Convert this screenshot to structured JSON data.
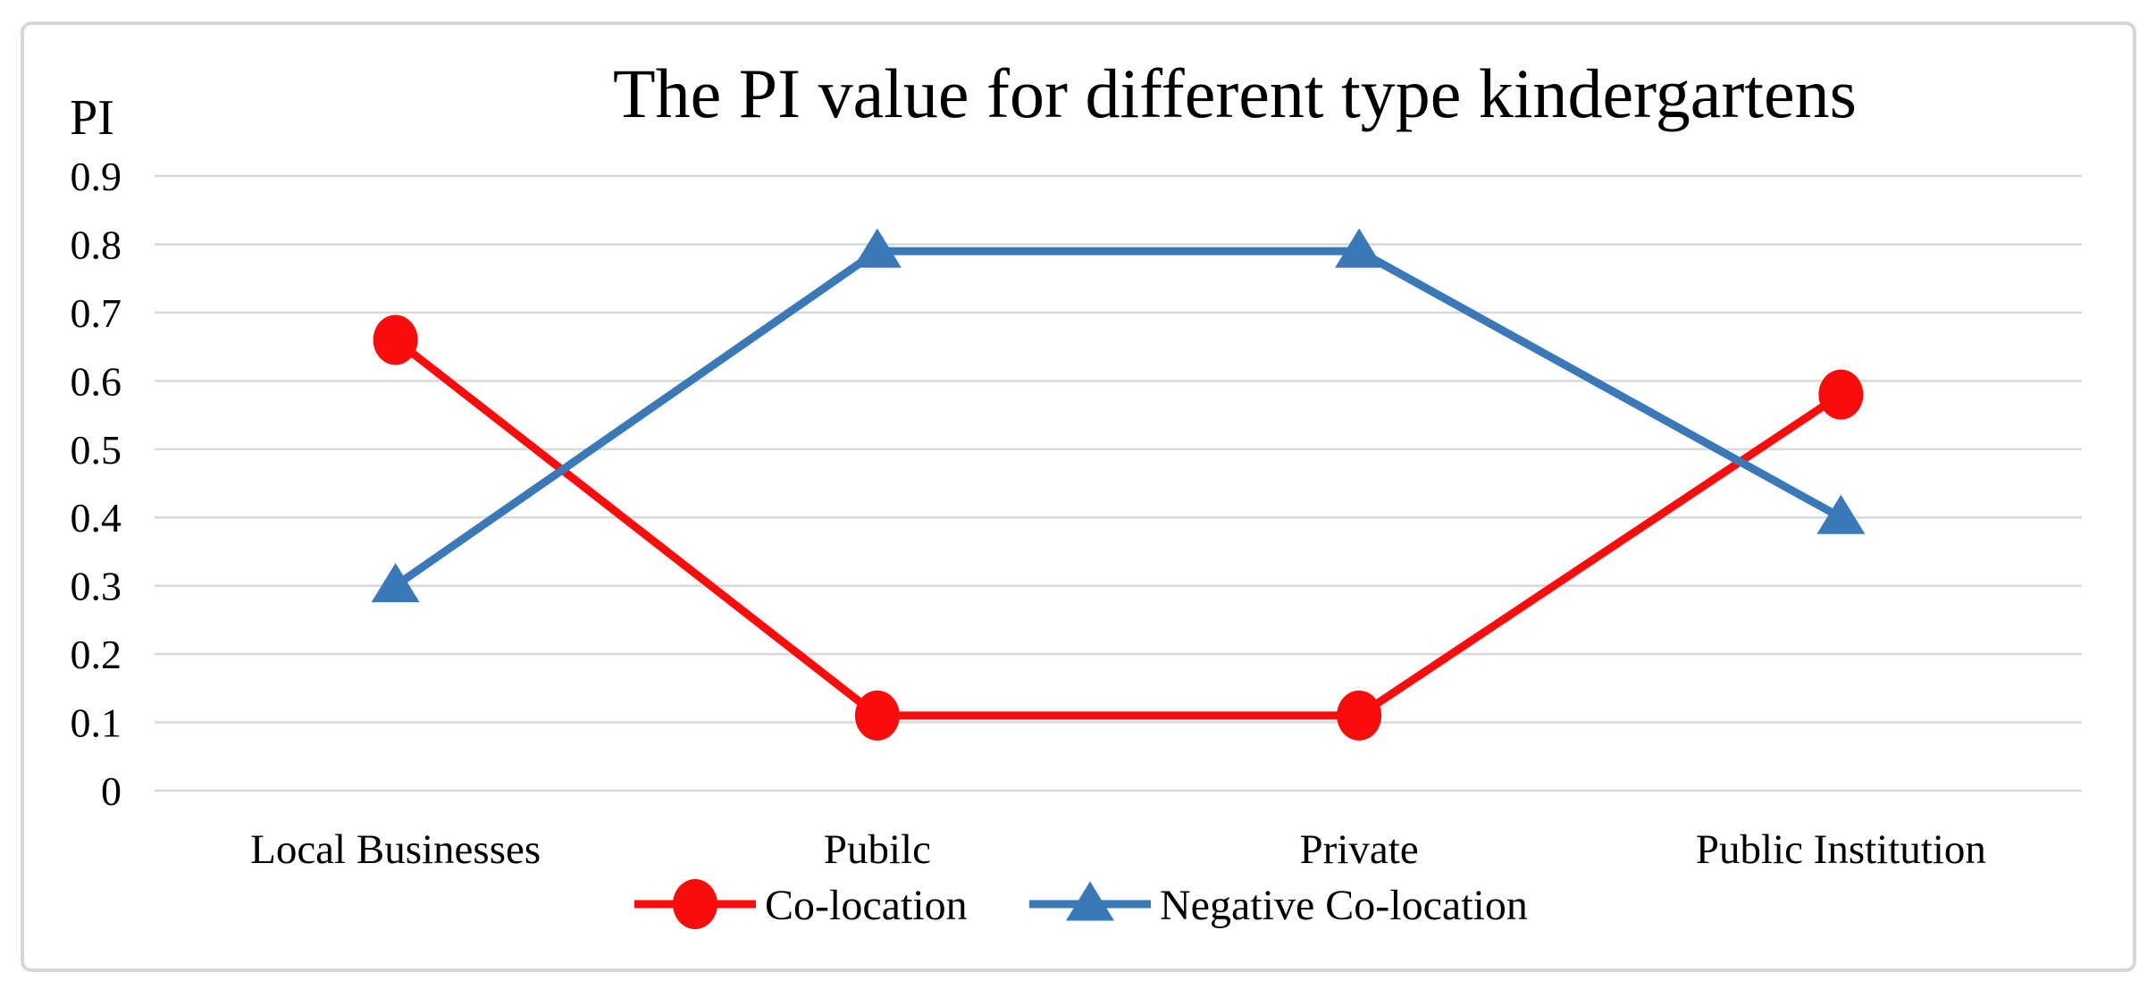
{
  "figure": {
    "background": "#ffffff",
    "border_color": "#d7d7d7",
    "gridline_color": "#d9d9d9",
    "text_color": "#000000"
  },
  "chart_data": {
    "type": "line",
    "title": "The PI value for different type kindergartens",
    "ylabel": "PI",
    "xlabel": "",
    "ylim": [
      0,
      0.9
    ],
    "yticks": [
      0,
      0.1,
      0.2,
      0.3,
      0.4,
      0.5,
      0.6,
      0.7,
      0.8,
      0.9
    ],
    "ytick_labels": [
      "0",
      "0.1",
      "0.2",
      "0.3",
      "0.4",
      "0.5",
      "0.6",
      "0.7",
      "0.8",
      "0.9"
    ],
    "grid": "horizontal",
    "legend_position": "bottom",
    "categories": [
      "Local Businesses",
      "Pubilc",
      "Private",
      "Public Institution"
    ],
    "series": [
      {
        "name": "Co-location",
        "color": "#f90c0c",
        "marker": "circle",
        "values": [
          0.66,
          0.11,
          0.11,
          0.58
        ]
      },
      {
        "name": "Negative Co-location",
        "color": "#3a78b8",
        "marker": "triangle",
        "values": [
          0.3,
          0.79,
          0.79,
          0.4
        ]
      }
    ]
  }
}
